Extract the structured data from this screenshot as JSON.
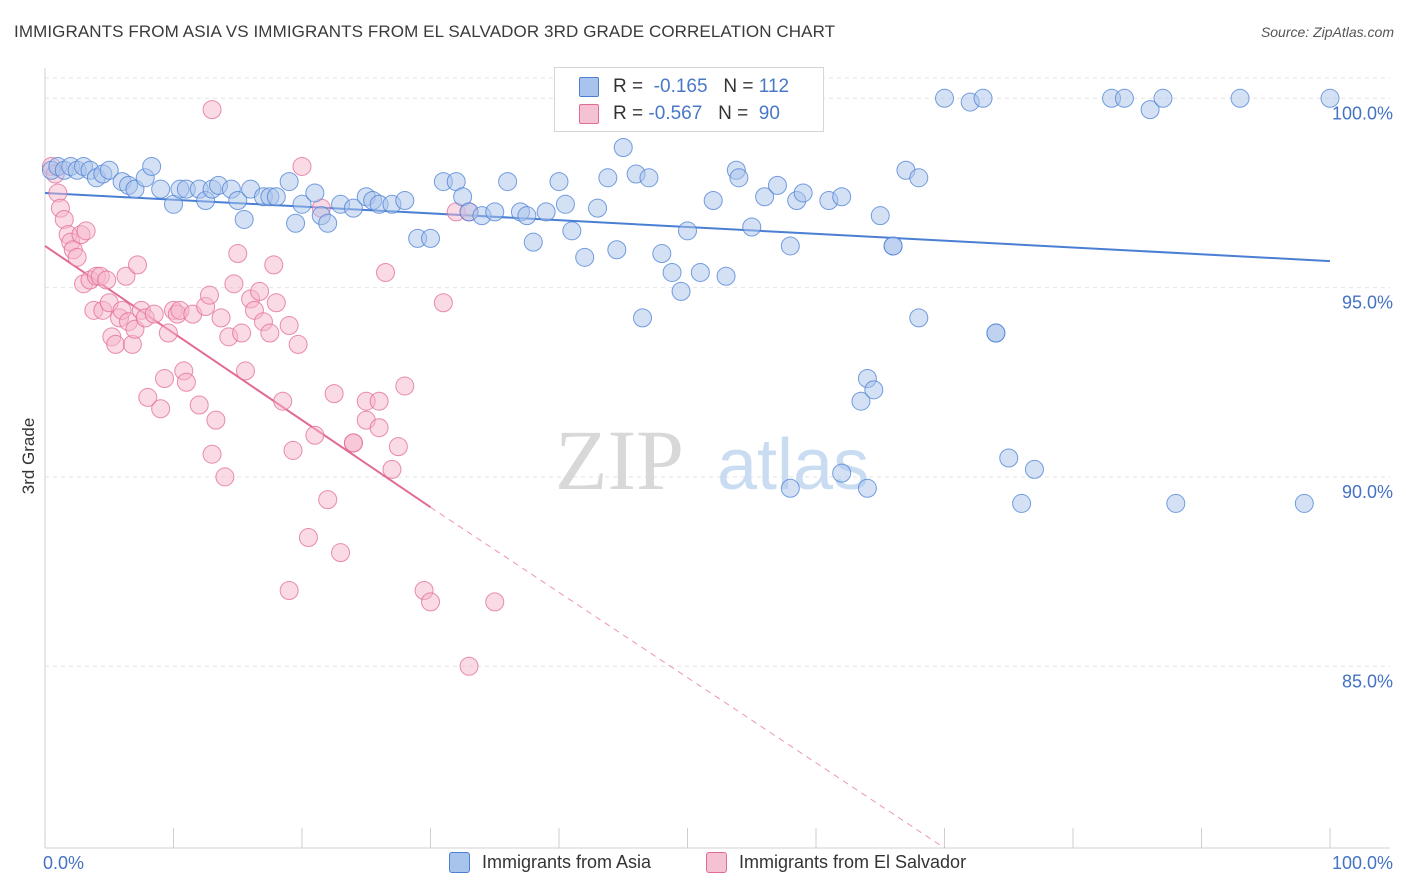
{
  "title": "IMMIGRANTS FROM ASIA VS IMMIGRANTS FROM EL SALVADOR 3RD GRADE CORRELATION CHART",
  "source": "Source: ZipAtlas.com",
  "watermark": {
    "zip": "ZIP",
    "atlas": "atlas"
  },
  "legend": {
    "series1": {
      "r_label": "R =",
      "r_value": "-0.165",
      "n_label": "N =",
      "n_value": "112"
    },
    "series2": {
      "r_label": "R =",
      "r_value": "-0.567",
      "n_label": "N =",
      "n_value": "90"
    }
  },
  "bottom_legend": {
    "series1": "Immigrants from Asia",
    "series2": "Immigrants from El Salvador"
  },
  "colors": {
    "blue": "#4a7fd4",
    "blue_fill": "#a9c4ec",
    "pink": "#e26a95",
    "pink_fill": "#f5b6cb",
    "axis_label_blue": "#4472c4",
    "grid": "#e4e4e4"
  },
  "chart_data": {
    "type": "scatter",
    "title": "IMMIGRANTS FROM ASIA VS IMMIGRANTS FROM EL SALVADOR 3RD GRADE CORRELATION CHART",
    "xlabel": "",
    "ylabel": "3rd Grade",
    "xlim": [
      0,
      100
    ],
    "ylim": [
      80.2,
      100.8
    ],
    "x_tick_labels": [
      "0.0%",
      "100.0%"
    ],
    "y_ticks": [
      85,
      90,
      95,
      100
    ],
    "y_tick_labels": [
      "85.0%",
      "90.0%",
      "95.0%",
      "100.0%"
    ],
    "grid": true,
    "series": [
      {
        "name": "Immigrants from Asia",
        "color": "#4a7fd4",
        "r": -0.165,
        "n": 112,
        "trend": {
          "x": [
            0,
            100
          ],
          "y": [
            97.5,
            95.7
          ],
          "style": "solid"
        },
        "points": [
          [
            0.5,
            98.1
          ],
          [
            1,
            98.2
          ],
          [
            1.5,
            98.1
          ],
          [
            2,
            98.2
          ],
          [
            2.5,
            98.1
          ],
          [
            3,
            98.2
          ],
          [
            3.5,
            98.1
          ],
          [
            4,
            97.9
          ],
          [
            4.5,
            98
          ],
          [
            5,
            98.1
          ],
          [
            6,
            97.8
          ],
          [
            6.5,
            97.7
          ],
          [
            7,
            97.6
          ],
          [
            7.8,
            97.9
          ],
          [
            8.3,
            98.2
          ],
          [
            9,
            97.6
          ],
          [
            10,
            97.2
          ],
          [
            10.5,
            97.6
          ],
          [
            11,
            97.6
          ],
          [
            12,
            97.6
          ],
          [
            12.5,
            97.3
          ],
          [
            13,
            97.6
          ],
          [
            13.5,
            97.7
          ],
          [
            14.5,
            97.6
          ],
          [
            15,
            97.3
          ],
          [
            15.5,
            96.8
          ],
          [
            16,
            97.6
          ],
          [
            17,
            97.4
          ],
          [
            17.5,
            97.4
          ],
          [
            18,
            97.4
          ],
          [
            19,
            97.8
          ],
          [
            19.5,
            96.7
          ],
          [
            20,
            97.2
          ],
          [
            21,
            97.5
          ],
          [
            21.5,
            96.9
          ],
          [
            22,
            96.7
          ],
          [
            23,
            97.2
          ],
          [
            24,
            97.1
          ],
          [
            25,
            97.4
          ],
          [
            25.5,
            97.3
          ],
          [
            26,
            97.2
          ],
          [
            27,
            97.2
          ],
          [
            28,
            97.3
          ],
          [
            29,
            96.3
          ],
          [
            30,
            96.3
          ],
          [
            31,
            97.8
          ],
          [
            32,
            97.8
          ],
          [
            32.5,
            97.4
          ],
          [
            33,
            97
          ],
          [
            34,
            96.9
          ],
          [
            35,
            97
          ],
          [
            36,
            97.8
          ],
          [
            37,
            97
          ],
          [
            37.5,
            96.9
          ],
          [
            38,
            96.2
          ],
          [
            39,
            97
          ],
          [
            40,
            97.8
          ],
          [
            40.5,
            97.2
          ],
          [
            41,
            96.5
          ],
          [
            42,
            95.8
          ],
          [
            43,
            97.1
          ],
          [
            43.8,
            97.9
          ],
          [
            44.5,
            96
          ],
          [
            45,
            98.7
          ],
          [
            46,
            98
          ],
          [
            46.5,
            94.2
          ],
          [
            47,
            97.9
          ],
          [
            48,
            95.9
          ],
          [
            48.8,
            95.4
          ],
          [
            49.5,
            94.9
          ],
          [
            50,
            96.5
          ],
          [
            51,
            95.4
          ],
          [
            52,
            97.3
          ],
          [
            53,
            95.3
          ],
          [
            53.8,
            98.1
          ],
          [
            54,
            97.9
          ],
          [
            55,
            96.6
          ],
          [
            56,
            97.4
          ],
          [
            57,
            97.7
          ],
          [
            58,
            96.1
          ],
          [
            58.5,
            97.3
          ],
          [
            59,
            97.5
          ],
          [
            61,
            97.3
          ],
          [
            62,
            97.4
          ],
          [
            64,
            92.6
          ],
          [
            63.5,
            92
          ],
          [
            64.5,
            92.3
          ],
          [
            65,
            96.9
          ],
          [
            66,
            96.1
          ],
          [
            67,
            98.1
          ],
          [
            68,
            97.9
          ],
          [
            68,
            94.2
          ],
          [
            70,
            100
          ],
          [
            72,
            99.9
          ],
          [
            73,
            100
          ],
          [
            74,
            93.8
          ],
          [
            75,
            90.5
          ],
          [
            77,
            90.2
          ],
          [
            62,
            90.1
          ],
          [
            64,
            89.7
          ],
          [
            76,
            89.3
          ],
          [
            83,
            100
          ],
          [
            84,
            100
          ],
          [
            86,
            99.7
          ],
          [
            87,
            100
          ],
          [
            88,
            89.3
          ],
          [
            93,
            100
          ],
          [
            100,
            100
          ],
          [
            98,
            89.3
          ],
          [
            58,
            89.7
          ],
          [
            74,
            93.8
          ],
          [
            66,
            96.1
          ]
        ]
      },
      {
        "name": "Immigrants from El Salvador",
        "color": "#e26a95",
        "r": -0.567,
        "n": 90,
        "trend": {
          "x": [
            0,
            30
          ],
          "y": [
            96.1,
            89.2
          ],
          "dashed_to": [
            70,
            80.2
          ]
        },
        "points": [
          [
            0.5,
            98.2
          ],
          [
            0.8,
            98
          ],
          [
            1,
            97.5
          ],
          [
            1.2,
            97.1
          ],
          [
            1.5,
            96.8
          ],
          [
            1.8,
            96.4
          ],
          [
            2,
            96.2
          ],
          [
            2.2,
            96
          ],
          [
            2.5,
            95.8
          ],
          [
            2.8,
            96.4
          ],
          [
            3,
            95.1
          ],
          [
            3.2,
            96.5
          ],
          [
            3.5,
            95.2
          ],
          [
            3.8,
            94.4
          ],
          [
            4,
            95.3
          ],
          [
            4.3,
            95.3
          ],
          [
            4.5,
            94.4
          ],
          [
            4.8,
            95.2
          ],
          [
            5,
            94.6
          ],
          [
            5.2,
            93.7
          ],
          [
            5.5,
            93.5
          ],
          [
            5.8,
            94.2
          ],
          [
            6,
            94.4
          ],
          [
            6.3,
            95.3
          ],
          [
            6.5,
            94.1
          ],
          [
            6.8,
            93.5
          ],
          [
            7,
            93.9
          ],
          [
            7.2,
            95.6
          ],
          [
            7.5,
            94.4
          ],
          [
            7.8,
            94.2
          ],
          [
            8,
            92.1
          ],
          [
            8.5,
            94.3
          ],
          [
            9,
            91.8
          ],
          [
            9.3,
            92.6
          ],
          [
            9.6,
            93.8
          ],
          [
            10,
            94.4
          ],
          [
            10.3,
            94.3
          ],
          [
            10.5,
            94.4
          ],
          [
            10.8,
            92.8
          ],
          [
            11,
            92.5
          ],
          [
            11.5,
            94.3
          ],
          [
            12,
            91.9
          ],
          [
            12.5,
            94.5
          ],
          [
            12.8,
            94.8
          ],
          [
            13,
            90.6
          ],
          [
            13.3,
            91.5
          ],
          [
            13.7,
            94.2
          ],
          [
            14,
            90
          ],
          [
            14.3,
            93.7
          ],
          [
            14.7,
            95.1
          ],
          [
            15,
            95.9
          ],
          [
            15.3,
            93.8
          ],
          [
            15.6,
            92.8
          ],
          [
            16,
            94.7
          ],
          [
            16.3,
            94.4
          ],
          [
            16.7,
            94.9
          ],
          [
            17,
            94.1
          ],
          [
            17.5,
            93.8
          ],
          [
            17.8,
            95.6
          ],
          [
            18,
            94.6
          ],
          [
            18.5,
            92
          ],
          [
            19,
            94
          ],
          [
            19.3,
            90.7
          ],
          [
            19.7,
            93.5
          ],
          [
            20,
            98.2
          ],
          [
            20.5,
            88.4
          ],
          [
            21,
            91.1
          ],
          [
            21.5,
            97.1
          ],
          [
            22,
            89.4
          ],
          [
            22.5,
            92.2
          ],
          [
            23,
            88
          ],
          [
            24,
            90.9
          ],
          [
            25,
            91.5
          ],
          [
            25,
            92
          ],
          [
            26,
            91.3
          ],
          [
            26.5,
            95.4
          ],
          [
            27,
            90.2
          ],
          [
            27.5,
            90.8
          ],
          [
            28,
            92.4
          ],
          [
            29.5,
            87
          ],
          [
            30,
            86.7
          ],
          [
            31,
            94.6
          ],
          [
            26,
            92
          ],
          [
            24,
            90.9
          ],
          [
            19,
            87
          ],
          [
            13,
            99.7
          ],
          [
            32,
            97
          ],
          [
            33,
            97
          ],
          [
            35,
            86.7
          ],
          [
            33,
            85
          ]
        ]
      }
    ]
  }
}
